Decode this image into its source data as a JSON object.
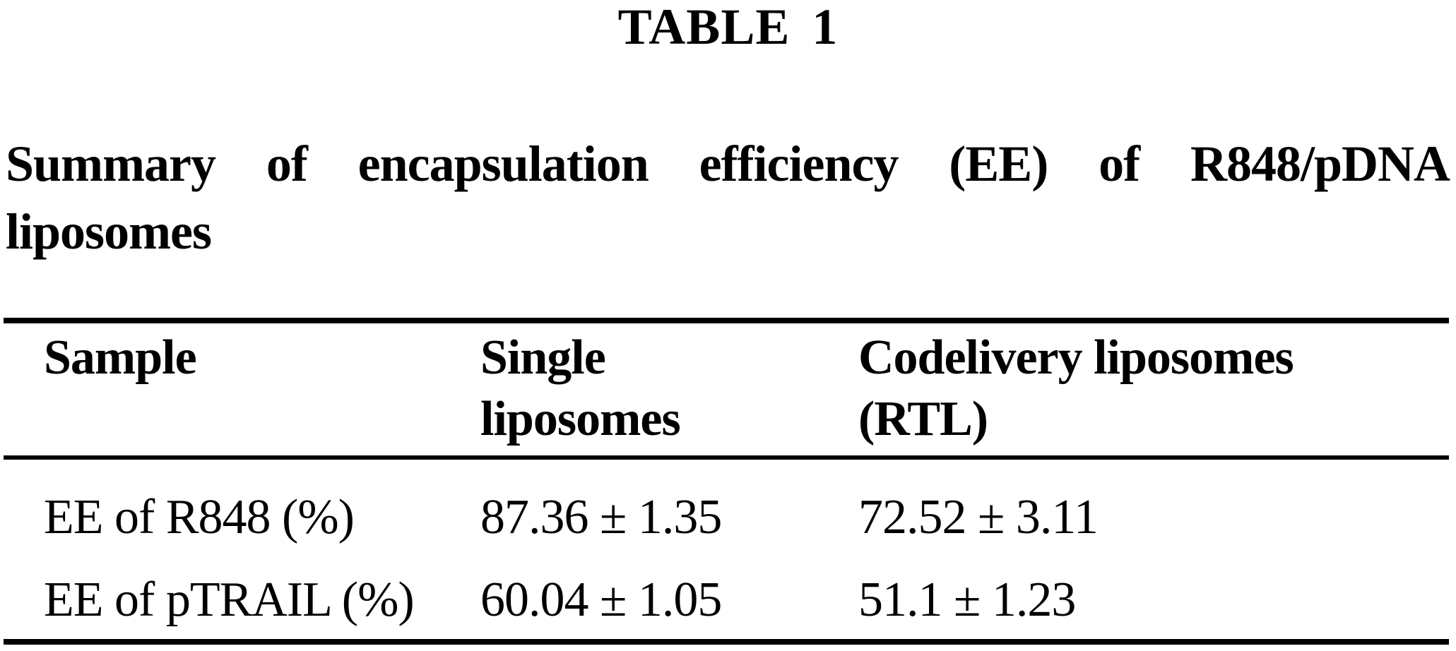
{
  "table_label": "TABLE 1",
  "caption": {
    "full": "Summary of encapsulation efficiency (EE) of R848/pDNA liposomes",
    "line1_words": {
      "w0": "Summary",
      "w1": "of",
      "w2": "encapsulation",
      "w3": "efficiency",
      "w4": "(EE)",
      "w5": "of",
      "w6": "R848/pDNA"
    },
    "line2": "liposomes"
  },
  "table": {
    "header": [
      {
        "line1": "Sample",
        "line2": ""
      },
      {
        "line1": "Single",
        "line2": "liposomes"
      },
      {
        "line1": "Codelivery liposomes",
        "line2": "(RTL)"
      }
    ],
    "rows": [
      [
        "EE of R848 (%)",
        "87.36 ± 1.35",
        "72.52 ± 3.11"
      ],
      [
        "EE of pTRAIL (%)",
        "60.04 ± 1.05",
        "51.1 ± 1.23"
      ]
    ]
  },
  "chart_data": {
    "type": "table",
    "title": "TABLE 1",
    "caption": "Summary of encapsulation efficiency (EE) of R848/pDNA liposomes",
    "columns": [
      "Sample",
      "Single liposomes",
      "Codelivery liposomes (RTL)"
    ],
    "categories": [
      "EE of R848 (%)",
      "EE of pTRAIL (%)"
    ],
    "series": [
      {
        "name": "Single liposomes",
        "values": [
          87.36,
          60.04
        ],
        "sd": [
          1.35,
          1.05
        ]
      },
      {
        "name": "Codelivery liposomes (RTL)",
        "values": [
          72.52,
          51.1
        ],
        "sd": [
          3.11,
          1.23
        ]
      }
    ]
  },
  "colors": {
    "background": "#ffffff",
    "text": "#000000",
    "rule": "#000000"
  }
}
